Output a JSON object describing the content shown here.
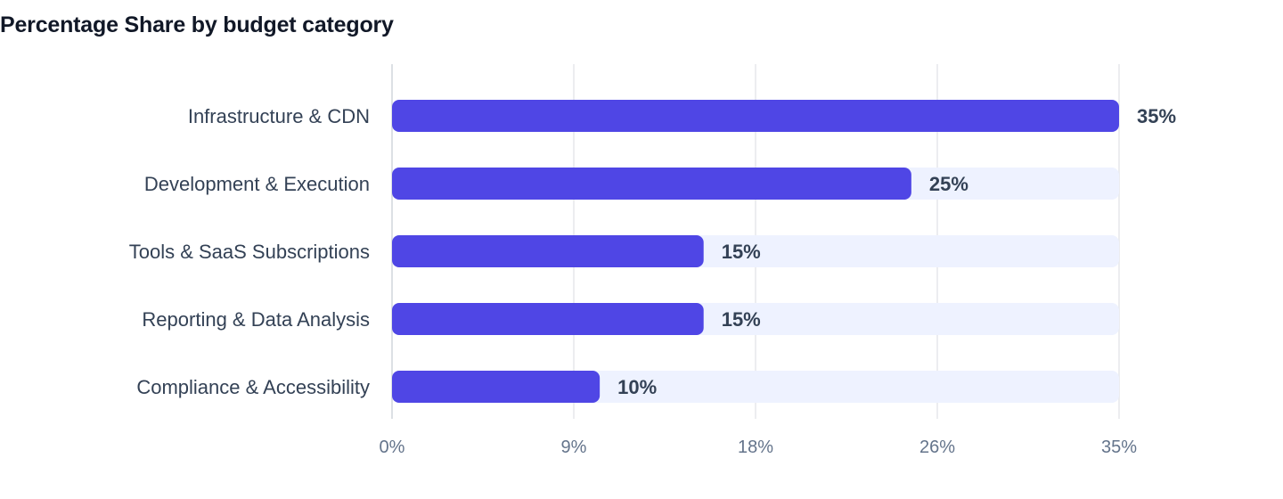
{
  "chart_data": {
    "type": "bar",
    "orientation": "horizontal",
    "title": "Percentage Share by budget category",
    "categories": [
      "Infrastructure & CDN",
      "Development & Execution",
      "Tools & SaaS Subscriptions",
      "Reporting & Data Analysis",
      "Compliance & Accessibility"
    ],
    "values": [
      35,
      25,
      15,
      15,
      10
    ],
    "value_labels": [
      "35%",
      "25%",
      "15%",
      "15%",
      "10%"
    ],
    "xlim": [
      0,
      35
    ],
    "x_ticks": [
      0,
      8.75,
      17.5,
      26.25,
      35
    ],
    "x_tick_labels": [
      "0%",
      "9%",
      "18%",
      "26%",
      "35%"
    ],
    "grid": true,
    "legend": "none",
    "colors": {
      "bar": "#4f46e5",
      "track": "#eef2ff",
      "grid": "#e5e7eb",
      "axis": "#d1d5db"
    }
  }
}
